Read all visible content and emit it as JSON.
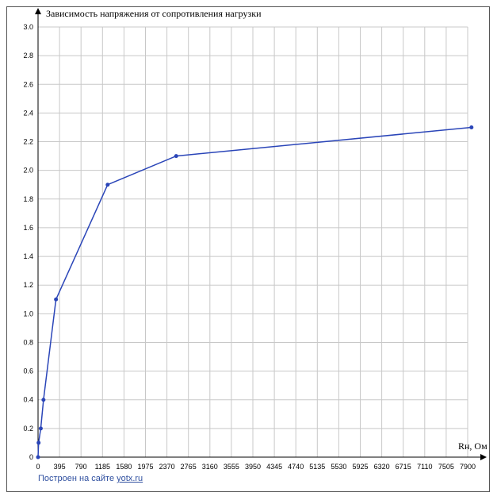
{
  "chart_data": {
    "type": "line",
    "title": "Зависимость напряжения от сопротивления нагрузки",
    "xlabel": "Rн, Ом",
    "ylabel": "",
    "x_ticks": [
      "0",
      "395",
      "790",
      "1185",
      "1580",
      "1975",
      "2370",
      "2765",
      "3160",
      "3555",
      "3950",
      "4345",
      "4740",
      "5135",
      "5530",
      "5925",
      "6320",
      "6715",
      "7110",
      "7505",
      "7900"
    ],
    "y_ticks": [
      "0",
      "0.2",
      "0.4",
      "0.6",
      "0.8",
      "1.0",
      "1.2",
      "1.4",
      "1.6",
      "1.8",
      "2.0",
      "2.2",
      "2.4",
      "2.6",
      "2.8",
      "3.0"
    ],
    "xlim": [
      0,
      7900
    ],
    "ylim": [
      0,
      3.0
    ],
    "grid": true,
    "series": [
      {
        "x": [
          0,
          10,
          50,
          100,
          330,
          1280,
          2540,
          7970
        ],
        "y": [
          0,
          0.1,
          0.2,
          0.4,
          1.1,
          1.9,
          2.1,
          2.3
        ]
      }
    ],
    "line_color": "#2a45b8",
    "grid_color": "#c8c8c8"
  },
  "footer": {
    "text": "Построен на сайте",
    "link": "yotx.ru"
  }
}
